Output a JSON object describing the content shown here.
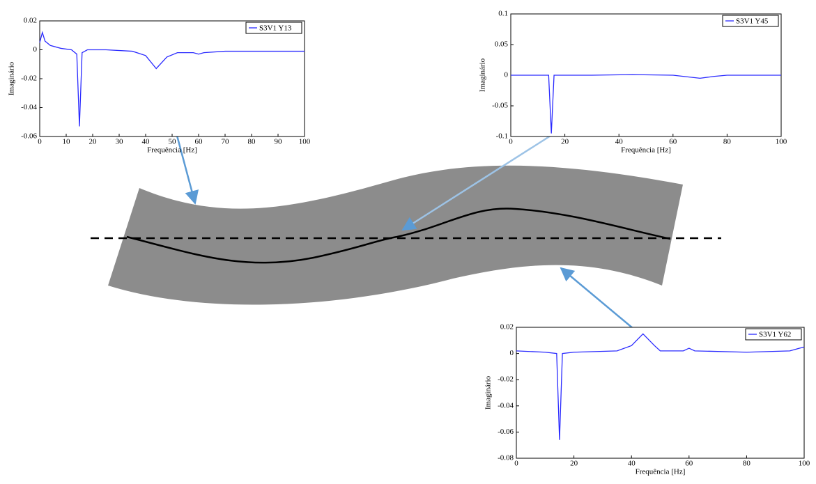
{
  "chart_data": [
    {
      "type": "line",
      "xlabel": "Frequência [Hz]",
      "ylabel": "Imaginário",
      "legend": "upper right",
      "xlim": [
        0,
        100
      ],
      "ylim": [
        -0.06,
        0.02
      ],
      "xticks": [
        0,
        10,
        20,
        30,
        40,
        50,
        60,
        70,
        80,
        90,
        100
      ],
      "yticks": [
        -0.06,
        -0.04,
        -0.02,
        0,
        0.02
      ],
      "x": [
        0,
        1,
        2,
        4,
        8,
        12,
        14,
        15,
        16,
        18,
        25,
        35,
        40,
        44,
        48,
        52,
        58,
        60,
        62,
        70,
        80,
        100
      ],
      "series": [
        {
          "name": "S3V1 Y13",
          "color": "#2a2aff",
          "values": [
            0.005,
            0.012,
            0.006,
            0.003,
            0.001,
            0.0,
            -0.003,
            -0.053,
            -0.002,
            0.0,
            0.0,
            -0.001,
            -0.004,
            -0.013,
            -0.005,
            -0.002,
            -0.002,
            -0.003,
            -0.002,
            -0.001,
            -0.001,
            -0.001
          ]
        }
      ]
    },
    {
      "type": "line",
      "xlabel": "Frequência [Hz]",
      "ylabel": "Imaginário",
      "legend": "upper right",
      "xlim": [
        0,
        100
      ],
      "ylim": [
        -0.1,
        0.1
      ],
      "xticks": [
        0,
        20,
        40,
        60,
        80,
        100
      ],
      "yticks": [
        -0.1,
        -0.05,
        0,
        0.05,
        0.1
      ],
      "x": [
        0,
        14,
        15,
        16,
        30,
        45,
        60,
        70,
        75,
        80,
        100
      ],
      "series": [
        {
          "name": "S3V1 Y45",
          "color": "#2a2aff",
          "values": [
            0.0,
            0.0,
            -0.095,
            0.0,
            0.0,
            0.001,
            0.0,
            -0.005,
            -0.002,
            0.0,
            0.0
          ]
        }
      ]
    },
    {
      "type": "line",
      "xlabel": "Frequência [Hz]",
      "ylabel": "Imaginário",
      "legend": "upper right",
      "xlim": [
        0,
        100
      ],
      "ylim": [
        -0.08,
        0.02
      ],
      "xticks": [
        0,
        20,
        40,
        60,
        80,
        100
      ],
      "yticks": [
        -0.08,
        -0.06,
        -0.04,
        -0.02,
        0,
        0.02
      ],
      "x": [
        0,
        10,
        14,
        15,
        16,
        20,
        35,
        40,
        44,
        48,
        50,
        58,
        60,
        62,
        80,
        95,
        100
      ],
      "series": [
        {
          "name": "S3V1 Y62",
          "color": "#2a2aff",
          "values": [
            0.002,
            0.001,
            0.0,
            -0.066,
            0.0,
            0.001,
            0.002,
            0.006,
            0.015,
            0.006,
            0.002,
            0.002,
            0.004,
            0.002,
            0.001,
            0.002,
            0.005
          ]
        }
      ]
    }
  ]
}
